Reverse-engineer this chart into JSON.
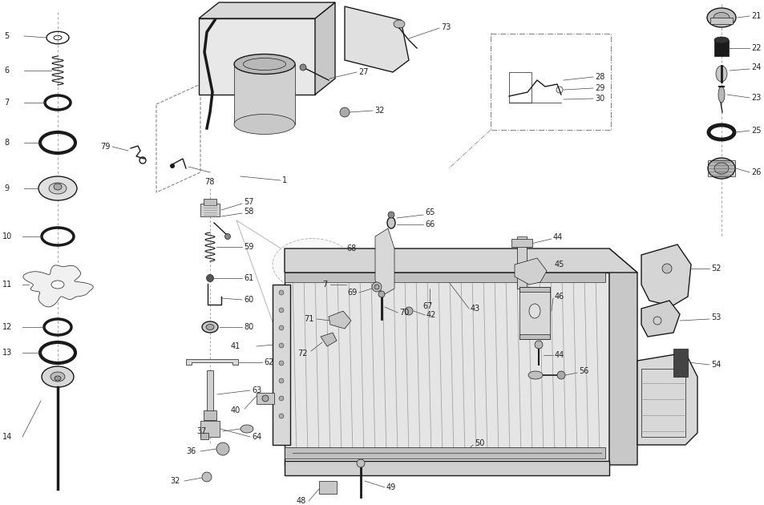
{
  "bg_color": "#ffffff",
  "line_color": "#1a1a1a",
  "fig_width": 9.54,
  "fig_height": 6.3,
  "dpi": 100,
  "label_fs": 7,
  "label_color": "#222222",
  "leader_color": "#444444",
  "leader_lw": 0.5,
  "part_lw": 0.8
}
